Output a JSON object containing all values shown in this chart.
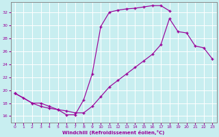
{
  "xlabel": "Windchill (Refroidissement éolien,°C)",
  "bg_color": "#c8eef0",
  "grid_color": "#ffffff",
  "line_color": "#990099",
  "xlim": [
    -0.5,
    23.5
  ],
  "ylim": [
    15.0,
    33.5
  ],
  "xticks": [
    0,
    1,
    2,
    3,
    4,
    5,
    6,
    7,
    8,
    9,
    10,
    11,
    12,
    13,
    14,
    15,
    16,
    17,
    18,
    19,
    20,
    21,
    22,
    23
  ],
  "yticks": [
    16,
    18,
    20,
    22,
    24,
    26,
    28,
    30,
    32
  ],
  "curve1_x": [
    0,
    1,
    2,
    3,
    4,
    5,
    6,
    7,
    8,
    9,
    10,
    11,
    12,
    13,
    14,
    15,
    16,
    17,
    18
  ],
  "curve1_y": [
    19.5,
    18.8,
    18.0,
    18.0,
    17.5,
    17.0,
    16.2,
    16.2,
    18.5,
    22.5,
    29.8,
    32.0,
    32.3,
    32.5,
    32.6,
    32.8,
    33.0,
    33.0,
    32.2
  ],
  "curve2_x": [
    0,
    2,
    3,
    4,
    5,
    6,
    7,
    8,
    9,
    10,
    11,
    12,
    13,
    14,
    15,
    16,
    17,
    18,
    19,
    20,
    21,
    22,
    23
  ],
  "curve2_y": [
    19.5,
    18.0,
    17.5,
    17.2,
    17.0,
    16.8,
    16.5,
    16.5,
    17.5,
    19.0,
    20.5,
    21.5,
    22.5,
    23.5,
    24.5,
    25.5,
    27.0,
    31.0,
    29.0,
    28.8,
    26.8,
    26.5,
    24.8
  ]
}
